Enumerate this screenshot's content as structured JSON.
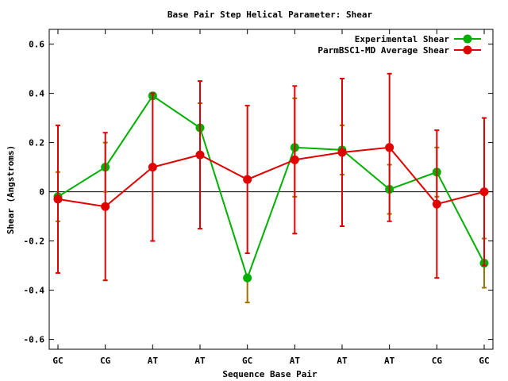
{
  "chart_data": {
    "type": "line",
    "title": "Base Pair Step Helical Parameter: Shear",
    "xlabel": "Sequence Base Pair",
    "ylabel": "Shear (Angstroms)",
    "categories": [
      "GC",
      "CG",
      "AT",
      "AT",
      "GC",
      "AT",
      "AT",
      "AT",
      "CG",
      "GC"
    ],
    "ylim": [
      -0.64,
      0.66
    ],
    "yticks": [
      -0.6,
      -0.4,
      -0.2,
      0,
      0.2,
      0.4,
      0.6
    ],
    "ytick_labels": [
      "-0.6",
      "-0.4",
      "-0.2",
      "0",
      "0.2",
      "0.4",
      "0.6"
    ],
    "legend_position": "top-right",
    "grid": false,
    "series": [
      {
        "name": "Experimental Shear",
        "color": "#00b000",
        "errcolor": "#a07000",
        "values": [
          -0.02,
          0.1,
          0.39,
          0.26,
          -0.35,
          0.18,
          0.17,
          0.01,
          0.08,
          -0.29
        ],
        "err_low": [
          -0.12,
          0.0,
          0.39,
          0.26,
          -0.45,
          -0.02,
          0.07,
          -0.09,
          -0.02,
          -0.39
        ],
        "err_high": [
          0.08,
          0.2,
          0.39,
          0.36,
          -0.35,
          0.38,
          0.27,
          0.11,
          0.18,
          -0.19
        ]
      },
      {
        "name": "ParmBSC1-MD Average Shear",
        "color": "#e00000",
        "errcolor": "#e00000",
        "values": [
          -0.03,
          -0.06,
          0.1,
          0.15,
          0.05,
          0.13,
          0.16,
          0.18,
          -0.05,
          0.0
        ],
        "err_low": [
          -0.33,
          -0.36,
          -0.2,
          -0.15,
          -0.25,
          -0.17,
          -0.14,
          -0.12,
          -0.35,
          -0.3
        ],
        "err_high": [
          0.27,
          0.24,
          0.4,
          0.45,
          0.35,
          0.43,
          0.46,
          0.48,
          0.25,
          0.3
        ]
      }
    ]
  }
}
